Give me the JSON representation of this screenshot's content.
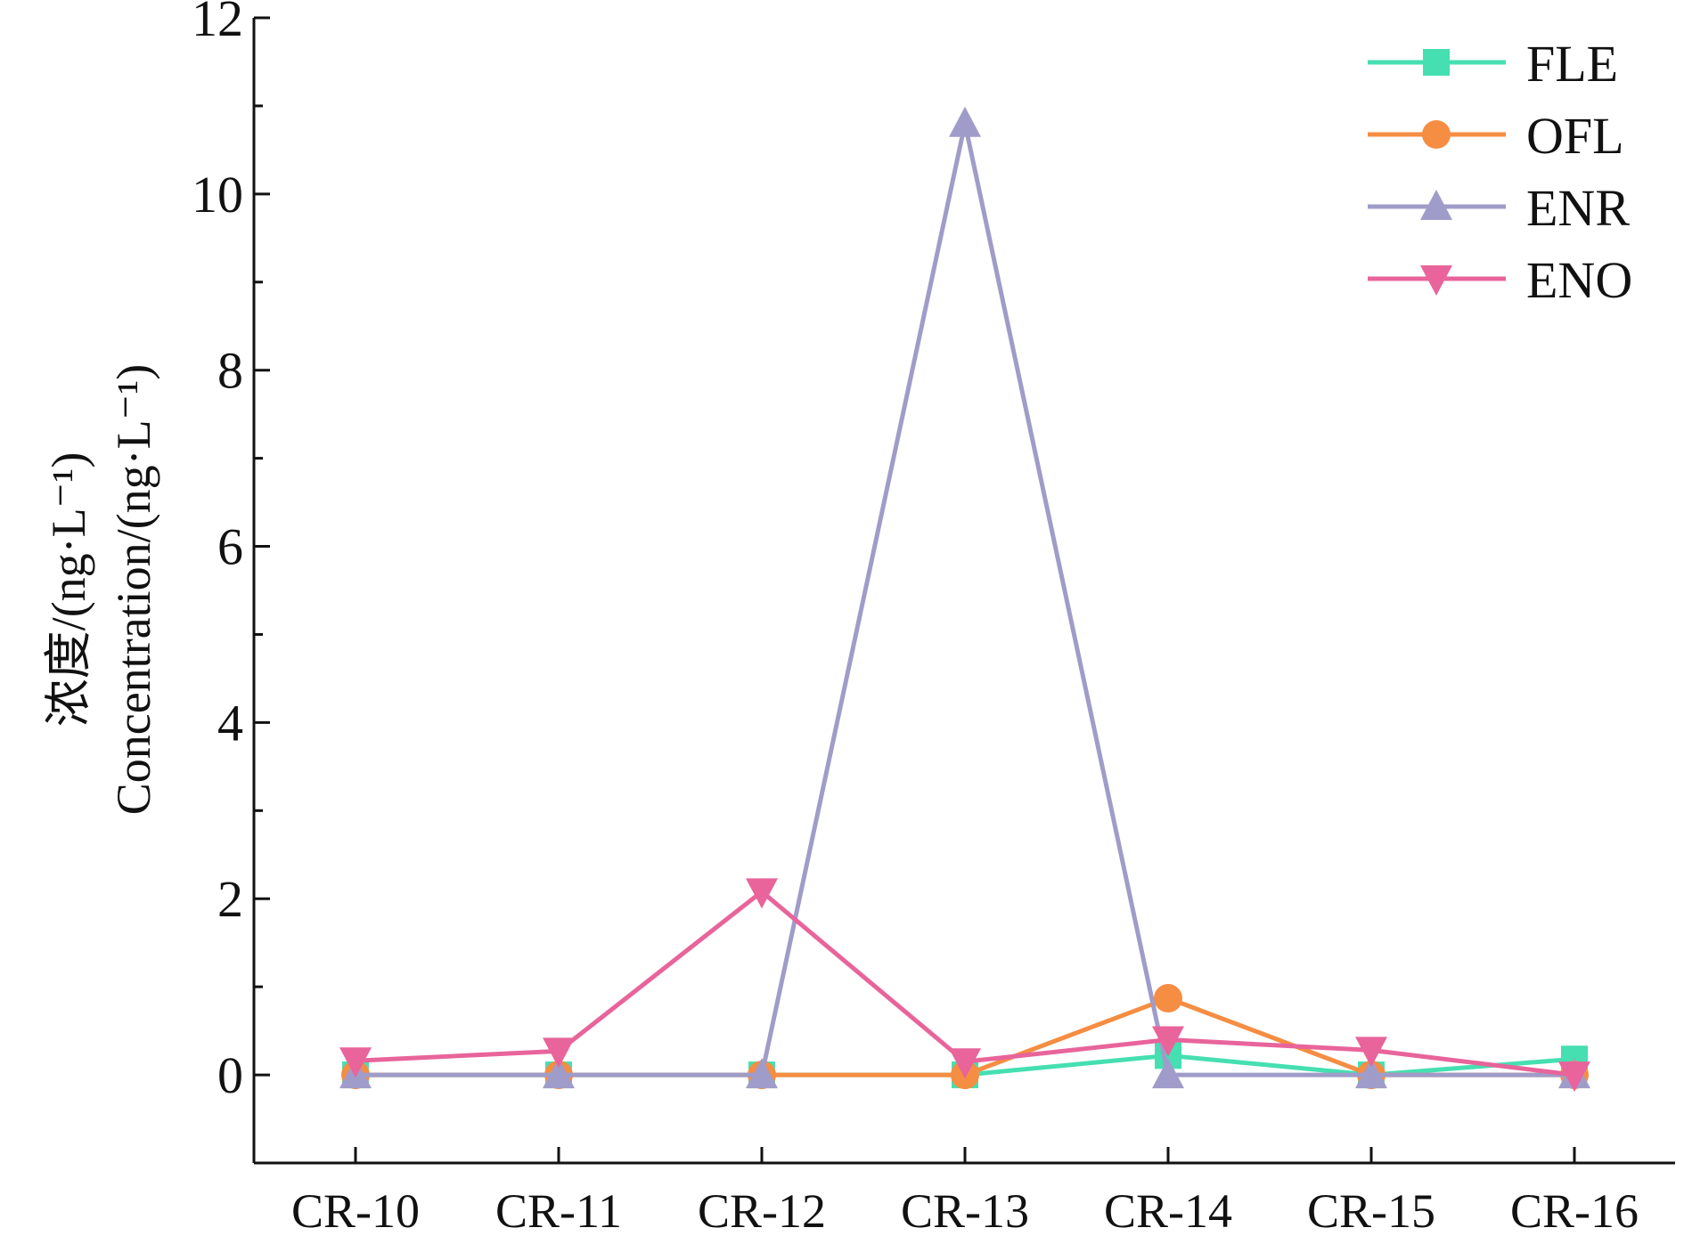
{
  "chart_data": {
    "type": "line",
    "title": "",
    "ylabel_line1": "浓度/(ng·L⁻¹)",
    "ylabel_line2": "Concentration/(ng·L⁻¹)",
    "xlabel": "",
    "categories": [
      "CR-10",
      "CR-11",
      "CR-12",
      "CR-13",
      "CR-14",
      "CR-15",
      "CR-16"
    ],
    "ylim": [
      -1,
      12
    ],
    "yticks": [
      0,
      2,
      4,
      6,
      8,
      10,
      12
    ],
    "grid": false,
    "legend_position": "top-right",
    "series": [
      {
        "name": "FLE",
        "marker": "square",
        "color": "#45dfb1",
        "values": [
          0,
          0,
          0,
          0,
          0.22,
          0,
          0.18
        ]
      },
      {
        "name": "OFL",
        "marker": "circle",
        "color": "#f58d42",
        "values": [
          0,
          0,
          0,
          0,
          0.87,
          0,
          0
        ]
      },
      {
        "name": "ENR",
        "marker": "triangle-up",
        "color": "#a09cc9",
        "values": [
          0,
          0,
          0,
          10.8,
          0,
          0,
          0
        ]
      },
      {
        "name": "ENO",
        "marker": "triangle-down",
        "color": "#e8649b",
        "values": [
          0.16,
          0.27,
          2.08,
          0.15,
          0.4,
          0.28,
          0
        ]
      }
    ]
  }
}
